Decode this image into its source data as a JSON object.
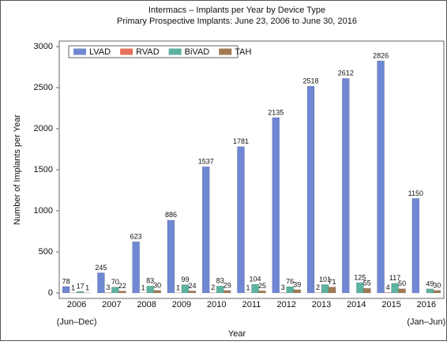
{
  "chart_data": {
    "type": "bar",
    "title": "Intermacs – Implants per Year by Device Type",
    "subtitle": "Primary Prospective Implants: June 23, 2006 to June 30, 2016",
    "xlabel": "Year",
    "ylabel": "Number of Implants per Year",
    "categories": [
      "2006",
      "2007",
      "2008",
      "2009",
      "2010",
      "2011",
      "2012",
      "2013",
      "2014",
      "2015",
      "2016"
    ],
    "category_notes": [
      "(Jun–Dec)",
      null,
      null,
      null,
      null,
      null,
      null,
      null,
      null,
      null,
      "(Jan–Jun)"
    ],
    "series": [
      {
        "name": "LVAD",
        "color": "#7087d4",
        "values": [
          78,
          245,
          623,
          886,
          1537,
          1781,
          2135,
          2518,
          2612,
          2826,
          1150
        ]
      },
      {
        "name": "RVAD",
        "color": "#e8705a",
        "values": [
          1,
          3,
          1,
          1,
          2,
          1,
          3,
          2,
          null,
          4,
          null
        ]
      },
      {
        "name": "BiVAD",
        "color": "#5cb3a0",
        "values": [
          17,
          70,
          83,
          99,
          83,
          104,
          76,
          101,
          125,
          117,
          49
        ]
      },
      {
        "name": "TAH",
        "color": "#a27a52",
        "values": [
          1,
          22,
          30,
          24,
          29,
          25,
          39,
          71,
          55,
          50,
          30
        ]
      }
    ],
    "ylim": [
      0,
      3000
    ],
    "yticks": [
      0,
      500,
      1000,
      1500,
      2000,
      2500,
      3000
    ],
    "legend": "upper left",
    "grid": false
  }
}
